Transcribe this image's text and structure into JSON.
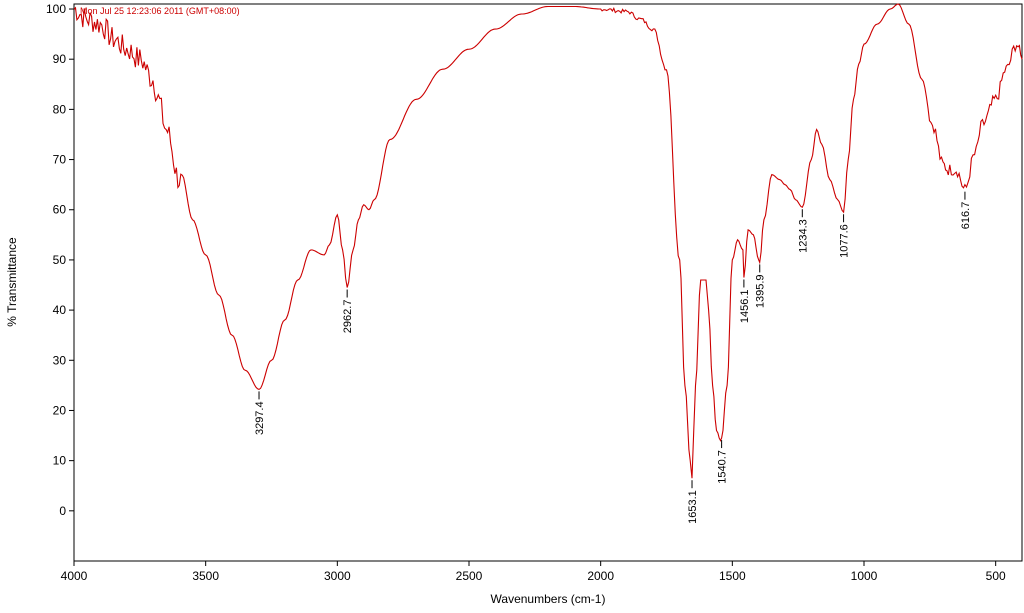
{
  "chart_data": {
    "type": "line",
    "timestamp": "Mon Jul 25 12:23:06 2011 (GMT+08:00)",
    "xlabel": "Wavenumbers (cm-1)",
    "ylabel": "% Transmittance",
    "xlim": [
      4000,
      400
    ],
    "ylim": [
      -10,
      101
    ],
    "x_ticks": [
      4000,
      3500,
      3000,
      2500,
      2000,
      1500,
      1000,
      500
    ],
    "x_tick_labels": [
      "4000",
      "3500",
      "3000",
      "2500",
      "2000",
      "1500",
      "1000",
      "500"
    ],
    "y_ticks": [
      0,
      10,
      20,
      30,
      40,
      50,
      60,
      70,
      80,
      90,
      100
    ],
    "y_tick_labels": [
      "0",
      "10",
      "20",
      "30",
      "40",
      "50",
      "60",
      "70",
      "80",
      "90",
      "100"
    ],
    "line_color": "#cc0000",
    "stamp_color": "#cc0000",
    "series": [
      {
        "x": [
          4000,
          3950,
          3900,
          3850,
          3800,
          3750,
          3700,
          3680,
          3650,
          3600,
          3550,
          3500,
          3450,
          3400,
          3350,
          3297.4,
          3250,
          3200,
          3150,
          3100,
          3050,
          3030,
          3000,
          2980,
          2962.7,
          2940,
          2920,
          2900,
          2880,
          2860,
          2800,
          2700,
          2600,
          2500,
          2400,
          2300,
          2200,
          2100,
          2000,
          1900,
          1850,
          1800,
          1750,
          1700,
          1680,
          1660,
          1653.1,
          1640,
          1620,
          1600,
          1590,
          1575,
          1560,
          1545,
          1540.7,
          1520,
          1500,
          1480,
          1460,
          1456.1,
          1440,
          1420,
          1400,
          1395.9,
          1380,
          1350,
          1320,
          1300,
          1280,
          1260,
          1234.3,
          1200,
          1180,
          1160,
          1130,
          1100,
          1077.6,
          1060,
          1040,
          1020,
          1000,
          950,
          900,
          870,
          830,
          780,
          740,
          700,
          680,
          650,
          616.7,
          580,
          550,
          500,
          460,
          420,
          400
        ],
        "y": [
          100,
          98,
          97,
          94,
          92,
          90,
          86,
          82,
          76,
          66,
          58,
          51,
          43,
          35,
          28,
          24.2,
          30,
          38,
          46,
          52,
          51,
          53,
          59,
          52,
          44.5,
          52,
          58,
          61,
          60,
          62,
          74,
          82,
          88,
          92,
          96,
          99,
          100.5,
          100.5,
          100,
          99.5,
          98,
          96,
          88,
          50,
          25,
          10,
          6.5,
          25,
          46,
          46,
          40,
          25,
          16,
          14,
          14.5,
          25,
          50,
          54,
          52,
          46.5,
          56,
          55,
          50,
          49.5,
          58,
          67,
          66,
          65,
          64,
          62,
          60.5,
          70,
          76,
          73,
          66,
          62,
          59.5,
          70,
          82,
          89,
          93,
          97,
          100,
          101,
          97,
          86,
          77,
          69,
          68,
          68,
          64,
          71,
          77,
          82,
          88,
          93,
          90
        ],
        "peaks": [
          {
            "x": 3297.4,
            "y": 24.2,
            "label": "3297.4"
          },
          {
            "x": 2962.7,
            "y": 44.5,
            "label": "2962.7"
          },
          {
            "x": 1653.1,
            "y": 6.5,
            "label": "1653.1"
          },
          {
            "x": 1540.7,
            "y": 14.5,
            "label": "1540.7"
          },
          {
            "x": 1456.1,
            "y": 46.5,
            "label": "1456.1"
          },
          {
            "x": 1395.9,
            "y": 49.5,
            "label": "1395.9"
          },
          {
            "x": 1234.3,
            "y": 60.5,
            "label": "1234.3"
          },
          {
            "x": 1077.6,
            "y": 59.5,
            "label": "1077.6"
          },
          {
            "x": 616.7,
            "y": 64,
            "label": "616.7"
          }
        ]
      }
    ]
  }
}
